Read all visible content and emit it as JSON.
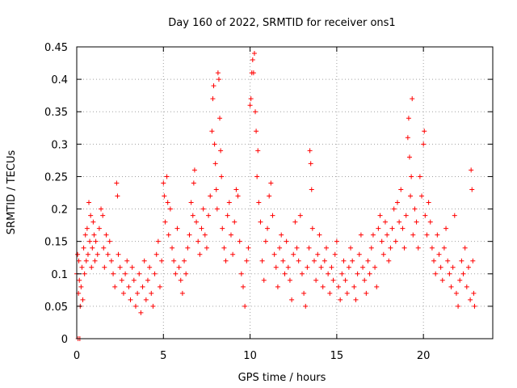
{
  "chart_data": {
    "type": "scatter",
    "title": "Day 160 of 2022, SRMTID for receiver ons1",
    "xlabel": "GPS time / hours",
    "ylabel": "SRMTID / TECUs",
    "xlim": [
      0,
      24
    ],
    "ylim": [
      0,
      0.45
    ],
    "xticks": [
      0,
      5,
      10,
      15,
      20
    ],
    "xtick_labels": [
      "0",
      "5",
      "10",
      "15",
      "20"
    ],
    "yticks": [
      0,
      0.05,
      0.1,
      0.15,
      0.2,
      0.25,
      0.3,
      0.35,
      0.4,
      0.45
    ],
    "ytick_labels": [
      "0",
      "0.05",
      "0.1",
      "0.15",
      "0.2",
      "0.25",
      "0.3",
      "0.35",
      "0.4",
      "0.45"
    ],
    "grid": true,
    "marker": "+",
    "color": "#ff0000",
    "series": [
      {
        "name": "SRMTID",
        "points": [
          [
            0.0,
            0.1
          ],
          [
            0.05,
            0.13
          ],
          [
            0.08,
            0.0
          ],
          [
            0.1,
            0.07
          ],
          [
            0.12,
            0.12
          ],
          [
            0.15,
            0.09
          ],
          [
            0.18,
            0.0
          ],
          [
            0.2,
            0.05
          ],
          [
            0.25,
            0.08
          ],
          [
            0.3,
            0.11
          ],
          [
            0.35,
            0.06
          ],
          [
            0.4,
            0.14
          ],
          [
            0.45,
            0.1
          ],
          [
            0.5,
            0.16
          ],
          [
            0.55,
            0.12
          ],
          [
            0.6,
            0.17
          ],
          [
            0.65,
            0.13
          ],
          [
            0.7,
            0.21
          ],
          [
            0.75,
            0.15
          ],
          [
            0.8,
            0.19
          ],
          [
            0.85,
            0.11
          ],
          [
            0.9,
            0.14
          ],
          [
            0.95,
            0.18
          ],
          [
            1.0,
            0.16
          ],
          [
            1.05,
            0.12
          ],
          [
            1.1,
            0.15
          ],
          [
            1.2,
            0.13
          ],
          [
            1.3,
            0.17
          ],
          [
            1.4,
            0.2
          ],
          [
            1.5,
            0.19
          ],
          [
            1.55,
            0.14
          ],
          [
            1.6,
            0.11
          ],
          [
            1.7,
            0.16
          ],
          [
            1.8,
            0.13
          ],
          [
            1.9,
            0.15
          ],
          [
            2.0,
            0.12
          ],
          [
            2.1,
            0.1
          ],
          [
            2.2,
            0.08
          ],
          [
            2.3,
            0.24
          ],
          [
            2.35,
            0.22
          ],
          [
            2.4,
            0.13
          ],
          [
            2.5,
            0.11
          ],
          [
            2.6,
            0.09
          ],
          [
            2.7,
            0.07
          ],
          [
            2.8,
            0.1
          ],
          [
            2.9,
            0.12
          ],
          [
            3.0,
            0.08
          ],
          [
            3.1,
            0.06
          ],
          [
            3.2,
            0.11
          ],
          [
            3.3,
            0.09
          ],
          [
            3.4,
            0.05
          ],
          [
            3.5,
            0.07
          ],
          [
            3.6,
            0.1
          ],
          [
            3.7,
            0.04
          ],
          [
            3.8,
            0.08
          ],
          [
            3.9,
            0.12
          ],
          [
            4.0,
            0.06
          ],
          [
            4.1,
            0.09
          ],
          [
            4.2,
            0.11
          ],
          [
            4.3,
            0.07
          ],
          [
            4.4,
            0.05
          ],
          [
            4.5,
            0.1
          ],
          [
            4.6,
            0.13
          ],
          [
            4.7,
            0.15
          ],
          [
            4.8,
            0.08
          ],
          [
            4.9,
            0.12
          ],
          [
            5.0,
            0.24
          ],
          [
            5.05,
            0.22
          ],
          [
            5.1,
            0.18
          ],
          [
            5.2,
            0.25
          ],
          [
            5.25,
            0.21
          ],
          [
            5.3,
            0.16
          ],
          [
            5.4,
            0.2
          ],
          [
            5.5,
            0.14
          ],
          [
            5.6,
            0.12
          ],
          [
            5.7,
            0.1
          ],
          [
            5.8,
            0.17
          ],
          [
            5.9,
            0.11
          ],
          [
            6.0,
            0.09
          ],
          [
            6.1,
            0.07
          ],
          [
            6.2,
            0.12
          ],
          [
            6.3,
            0.1
          ],
          [
            6.4,
            0.14
          ],
          [
            6.5,
            0.16
          ],
          [
            6.6,
            0.21
          ],
          [
            6.7,
            0.19
          ],
          [
            6.75,
            0.24
          ],
          [
            6.8,
            0.26
          ],
          [
            6.9,
            0.18
          ],
          [
            7.0,
            0.15
          ],
          [
            7.1,
            0.13
          ],
          [
            7.2,
            0.17
          ],
          [
            7.3,
            0.2
          ],
          [
            7.4,
            0.16
          ],
          [
            7.5,
            0.14
          ],
          [
            7.6,
            0.19
          ],
          [
            7.7,
            0.22
          ],
          [
            7.8,
            0.32
          ],
          [
            7.85,
            0.37
          ],
          [
            7.9,
            0.39
          ],
          [
            7.95,
            0.3
          ],
          [
            8.0,
            0.27
          ],
          [
            8.05,
            0.23
          ],
          [
            8.1,
            0.2
          ],
          [
            8.15,
            0.41
          ],
          [
            8.2,
            0.4
          ],
          [
            8.25,
            0.34
          ],
          [
            8.3,
            0.29
          ],
          [
            8.35,
            0.25
          ],
          [
            8.4,
            0.17
          ],
          [
            8.5,
            0.14
          ],
          [
            8.6,
            0.12
          ],
          [
            8.7,
            0.19
          ],
          [
            8.8,
            0.21
          ],
          [
            8.9,
            0.16
          ],
          [
            9.0,
            0.13
          ],
          [
            9.1,
            0.18
          ],
          [
            9.2,
            0.23
          ],
          [
            9.3,
            0.22
          ],
          [
            9.4,
            0.15
          ],
          [
            9.5,
            0.1
          ],
          [
            9.6,
            0.08
          ],
          [
            9.7,
            0.05
          ],
          [
            9.8,
            0.12
          ],
          [
            9.9,
            0.14
          ],
          [
            10.0,
            0.36
          ],
          [
            10.05,
            0.37
          ],
          [
            10.1,
            0.41
          ],
          [
            10.15,
            0.43
          ],
          [
            10.2,
            0.41
          ],
          [
            10.25,
            0.44
          ],
          [
            10.3,
            0.35
          ],
          [
            10.35,
            0.32
          ],
          [
            10.4,
            0.25
          ],
          [
            10.45,
            0.29
          ],
          [
            10.5,
            0.21
          ],
          [
            10.6,
            0.18
          ],
          [
            10.7,
            0.12
          ],
          [
            10.8,
            0.09
          ],
          [
            10.9,
            0.15
          ],
          [
            11.0,
            0.17
          ],
          [
            11.1,
            0.22
          ],
          [
            11.2,
            0.24
          ],
          [
            11.3,
            0.19
          ],
          [
            11.4,
            0.13
          ],
          [
            11.5,
            0.11
          ],
          [
            11.6,
            0.08
          ],
          [
            11.7,
            0.14
          ],
          [
            11.8,
            0.16
          ],
          [
            11.9,
            0.12
          ],
          [
            12.0,
            0.1
          ],
          [
            12.1,
            0.15
          ],
          [
            12.2,
            0.11
          ],
          [
            12.3,
            0.09
          ],
          [
            12.4,
            0.06
          ],
          [
            12.5,
            0.13
          ],
          [
            12.6,
            0.18
          ],
          [
            12.7,
            0.14
          ],
          [
            12.8,
            0.12
          ],
          [
            12.9,
            0.19
          ],
          [
            13.0,
            0.1
          ],
          [
            13.1,
            0.07
          ],
          [
            13.2,
            0.05
          ],
          [
            13.3,
            0.11
          ],
          [
            13.4,
            0.14
          ],
          [
            13.45,
            0.29
          ],
          [
            13.5,
            0.27
          ],
          [
            13.55,
            0.23
          ],
          [
            13.6,
            0.17
          ],
          [
            13.7,
            0.12
          ],
          [
            13.8,
            0.09
          ],
          [
            13.9,
            0.13
          ],
          [
            14.0,
            0.16
          ],
          [
            14.1,
            0.11
          ],
          [
            14.2,
            0.08
          ],
          [
            14.3,
            0.12
          ],
          [
            14.4,
            0.14
          ],
          [
            14.5,
            0.1
          ],
          [
            14.6,
            0.07
          ],
          [
            14.7,
            0.11
          ],
          [
            14.8,
            0.09
          ],
          [
            14.9,
            0.13
          ],
          [
            15.0,
            0.15
          ],
          [
            15.1,
            0.08
          ],
          [
            15.2,
            0.06
          ],
          [
            15.3,
            0.1
          ],
          [
            15.4,
            0.12
          ],
          [
            15.5,
            0.09
          ],
          [
            15.6,
            0.07
          ],
          [
            15.7,
            0.11
          ],
          [
            15.8,
            0.14
          ],
          [
            15.9,
            0.12
          ],
          [
            16.0,
            0.08
          ],
          [
            16.1,
            0.06
          ],
          [
            16.2,
            0.1
          ],
          [
            16.3,
            0.13
          ],
          [
            16.4,
            0.16
          ],
          [
            16.5,
            0.11
          ],
          [
            16.6,
            0.09
          ],
          [
            16.7,
            0.07
          ],
          [
            16.8,
            0.12
          ],
          [
            16.9,
            0.1
          ],
          [
            17.0,
            0.14
          ],
          [
            17.1,
            0.16
          ],
          [
            17.2,
            0.11
          ],
          [
            17.3,
            0.08
          ],
          [
            17.4,
            0.17
          ],
          [
            17.5,
            0.19
          ],
          [
            17.6,
            0.15
          ],
          [
            17.7,
            0.13
          ],
          [
            17.8,
            0.18
          ],
          [
            17.9,
            0.16
          ],
          [
            18.0,
            0.12
          ],
          [
            18.1,
            0.14
          ],
          [
            18.2,
            0.17
          ],
          [
            18.3,
            0.2
          ],
          [
            18.4,
            0.15
          ],
          [
            18.5,
            0.21
          ],
          [
            18.6,
            0.18
          ],
          [
            18.7,
            0.23
          ],
          [
            18.8,
            0.17
          ],
          [
            18.9,
            0.14
          ],
          [
            19.0,
            0.19
          ],
          [
            19.1,
            0.31
          ],
          [
            19.15,
            0.34
          ],
          [
            19.2,
            0.28
          ],
          [
            19.25,
            0.22
          ],
          [
            19.3,
            0.25
          ],
          [
            19.35,
            0.37
          ],
          [
            19.4,
            0.16
          ],
          [
            19.5,
            0.2
          ],
          [
            19.6,
            0.18
          ],
          [
            19.7,
            0.14
          ],
          [
            19.8,
            0.25
          ],
          [
            19.9,
            0.22
          ],
          [
            20.0,
            0.3
          ],
          [
            20.05,
            0.32
          ],
          [
            20.1,
            0.19
          ],
          [
            20.2,
            0.16
          ],
          [
            20.3,
            0.21
          ],
          [
            20.4,
            0.18
          ],
          [
            20.5,
            0.14
          ],
          [
            20.6,
            0.12
          ],
          [
            20.7,
            0.1
          ],
          [
            20.8,
            0.16
          ],
          [
            20.9,
            0.13
          ],
          [
            21.0,
            0.11
          ],
          [
            21.1,
            0.09
          ],
          [
            21.2,
            0.14
          ],
          [
            21.3,
            0.17
          ],
          [
            21.4,
            0.12
          ],
          [
            21.5,
            0.1
          ],
          [
            21.6,
            0.08
          ],
          [
            21.7,
            0.11
          ],
          [
            21.8,
            0.19
          ],
          [
            21.9,
            0.07
          ],
          [
            22.0,
            0.05
          ],
          [
            22.1,
            0.09
          ],
          [
            22.2,
            0.12
          ],
          [
            22.3,
            0.1
          ],
          [
            22.4,
            0.14
          ],
          [
            22.5,
            0.08
          ],
          [
            22.6,
            0.11
          ],
          [
            22.7,
            0.06
          ],
          [
            22.75,
            0.26
          ],
          [
            22.8,
            0.23
          ],
          [
            22.85,
            0.12
          ],
          [
            22.9,
            0.07
          ],
          [
            22.95,
            0.05
          ]
        ]
      }
    ]
  }
}
